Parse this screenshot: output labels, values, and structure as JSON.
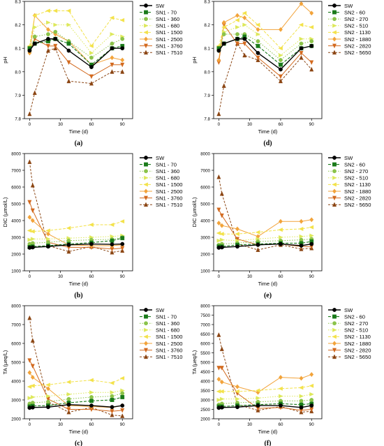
{
  "colors": {
    "SW": "#000000",
    "T1": "#1a7a1a",
    "T2": "#8bc34a",
    "T3": "#dde85a",
    "T4": "#f3e24a",
    "T5": "#f2a33a",
    "T6": "#d2691e",
    "T7": "#8b4513"
  },
  "chart_data": [
    {
      "panel": "(a)",
      "type": "line",
      "x": [
        0,
        5,
        18,
        25,
        38,
        60,
        80,
        90
      ],
      "xlabel": "Time (d)",
      "ylabel": "pH",
      "xlim": [
        -5,
        100
      ],
      "xticks": [
        0,
        30,
        60,
        90
      ],
      "ylim": [
        7.8,
        8.3
      ],
      "yticks": [
        7.8,
        7.9,
        8.0,
        8.1,
        8.2,
        8.3
      ],
      "series": [
        {
          "name": "SW",
          "values": [
            8.09,
            8.12,
            8.14,
            8.14,
            8.09,
            8.02,
            8.1,
            8.1
          ]
        },
        {
          "name": "SN1 - 70",
          "values": [
            8.1,
            8.12,
            8.13,
            8.14,
            8.12,
            8.03,
            8.1,
            8.11
          ]
        },
        {
          "name": "SN1 - 360",
          "values": [
            8.09,
            8.15,
            8.16,
            8.17,
            8.13,
            8.06,
            8.12,
            8.14
          ]
        },
        {
          "name": "SN1 - 680",
          "values": [
            8.1,
            8.19,
            8.21,
            8.2,
            8.2,
            8.08,
            8.16,
            8.15
          ]
        },
        {
          "name": "SN1 - 1500",
          "values": [
            8.11,
            8.24,
            8.26,
            8.26,
            8.26,
            8.11,
            8.23,
            8.22
          ]
        },
        {
          "name": "SN1 - 2500",
          "values": [
            8.08,
            8.24,
            8.18,
            8.16,
            8.13,
            8.03,
            8.06,
            8.05
          ]
        },
        {
          "name": "SN1 - 3760",
          "values": [
            8.08,
            8.14,
            8.11,
            8.11,
            8.04,
            7.98,
            8.03,
            8.03
          ]
        },
        {
          "name": "SN1 - 7510",
          "values": [
            7.82,
            7.91,
            8.09,
            8.1,
            7.96,
            7.95,
            8.0,
            8.0
          ]
        }
      ]
    },
    {
      "panel": "(d)",
      "type": "line",
      "x": [
        0,
        5,
        18,
        25,
        38,
        60,
        80,
        90
      ],
      "xlabel": "Time (d)",
      "ylabel": "pH",
      "xlim": [
        -5,
        100
      ],
      "xticks": [
        0,
        30,
        60,
        90
      ],
      "ylim": [
        7.8,
        8.3
      ],
      "yticks": [
        7.8,
        7.9,
        8.0,
        8.1,
        8.2,
        8.3
      ],
      "series": [
        {
          "name": "SW",
          "values": [
            8.09,
            8.12,
            8.14,
            8.14,
            8.08,
            8.01,
            8.1,
            8.11
          ]
        },
        {
          "name": "SN2 - 60",
          "values": [
            8.1,
            8.12,
            8.14,
            8.15,
            8.11,
            8.03,
            8.1,
            8.11
          ]
        },
        {
          "name": "SN2 - 270",
          "values": [
            8.09,
            8.16,
            8.16,
            8.16,
            8.13,
            8.05,
            8.12,
            8.13
          ]
        },
        {
          "name": "SN2 - 510",
          "values": [
            8.1,
            8.17,
            8.19,
            8.2,
            8.16,
            8.07,
            8.14,
            8.14
          ]
        },
        {
          "name": "SN2 - 1130",
          "values": [
            8.11,
            8.19,
            8.22,
            8.25,
            8.2,
            8.1,
            8.2,
            8.19
          ]
        },
        {
          "name": "SN2 - 1880",
          "values": [
            8.05,
            8.21,
            8.24,
            8.23,
            8.18,
            8.18,
            8.29,
            8.25
          ]
        },
        {
          "name": "SN2 - 2820",
          "values": [
            8.04,
            8.2,
            8.12,
            8.12,
            8.06,
            7.98,
            8.08,
            8.04
          ]
        },
        {
          "name": "SN2 - 5650",
          "values": [
            7.82,
            7.94,
            8.12,
            8.07,
            8.05,
            7.96,
            8.06,
            8.01
          ]
        }
      ]
    },
    {
      "panel": "(b)",
      "type": "line",
      "x": [
        0,
        3,
        18,
        38,
        60,
        80,
        90
      ],
      "xlabel": "Time (d)",
      "ylabel": "DIC (µmol/L)",
      "xlim": [
        -5,
        100
      ],
      "xticks": [
        0,
        30,
        60,
        90
      ],
      "ylim": [
        1000,
        8000
      ],
      "yticks": [
        1000,
        2000,
        3000,
        4000,
        5000,
        6000,
        7000,
        8000
      ],
      "series": [
        {
          "name": "SW",
          "values": [
            2380,
            2400,
            2450,
            2550,
            2600,
            2580,
            2600
          ]
        },
        {
          "name": "SN1 - 70",
          "values": [
            2420,
            2450,
            2500,
            2600,
            2680,
            2800,
            2950
          ]
        },
        {
          "name": "SN1 - 360",
          "values": [
            2600,
            2650,
            2700,
            2800,
            2850,
            2880,
            3000
          ]
        },
        {
          "name": "SN1 - 680",
          "values": [
            2850,
            2900,
            2900,
            2950,
            3000,
            3050,
            3100
          ]
        },
        {
          "name": "SN1 - 1500",
          "values": [
            3400,
            3350,
            3400,
            3550,
            3750,
            3750,
            3950
          ]
        },
        {
          "name": "SN1 - 2500",
          "values": [
            4200,
            4000,
            3200,
            2550,
            2500,
            2500,
            2550
          ]
        },
        {
          "name": "SN1 - 3760",
          "values": [
            5100,
            4600,
            2700,
            2400,
            2400,
            2300,
            2350
          ]
        },
        {
          "name": "SN1 - 7510",
          "values": [
            7500,
            6100,
            2500,
            2150,
            2450,
            2100,
            2200
          ]
        }
      ]
    },
    {
      "panel": "(e)",
      "type": "line",
      "x": [
        0,
        3,
        18,
        38,
        60,
        80,
        90
      ],
      "xlabel": "Time (d)",
      "ylabel": "DIC (µmol/L)",
      "xlim": [
        -5,
        100
      ],
      "xticks": [
        0,
        30,
        60,
        90
      ],
      "ylim": [
        1000,
        8000
      ],
      "yticks": [
        1000,
        2000,
        3000,
        4000,
        5000,
        6000,
        7000,
        8000
      ],
      "series": [
        {
          "name": "SW",
          "values": [
            2380,
            2400,
            2450,
            2550,
            2600,
            2500,
            2600
          ]
        },
        {
          "name": "SN2 - 60",
          "values": [
            2450,
            2450,
            2550,
            2600,
            2650,
            2650,
            2750
          ]
        },
        {
          "name": "SN2 - 270",
          "values": [
            2550,
            2600,
            2650,
            2750,
            2800,
            2850,
            2900
          ]
        },
        {
          "name": "SN2 - 510",
          "values": [
            2800,
            2850,
            2800,
            2900,
            3000,
            3050,
            3100
          ]
        },
        {
          "name": "SN2 - 1130",
          "values": [
            3250,
            3200,
            3200,
            3300,
            3450,
            3500,
            3600
          ]
        },
        {
          "name": "SN2 - 1880",
          "values": [
            3850,
            3700,
            3500,
            3050,
            3950,
            3950,
            4050
          ]
        },
        {
          "name": "SN2 - 2820",
          "values": [
            4650,
            4300,
            2900,
            2550,
            2600,
            2450,
            2450
          ]
        },
        {
          "name": "SN2 - 5650",
          "values": [
            6600,
            5600,
            2600,
            2250,
            2550,
            2300,
            2350
          ]
        }
      ]
    },
    {
      "panel": "(c)",
      "type": "line",
      "x": [
        0,
        3,
        18,
        38,
        60,
        80,
        90
      ],
      "xlabel": "Time (d)",
      "ylabel": "TA (µeq/L)",
      "xlim": [
        -5,
        100
      ],
      "xticks": [
        0,
        30,
        60,
        90
      ],
      "ylim": [
        2000,
        8000
      ],
      "yticks": [
        2000,
        3000,
        4000,
        5000,
        6000,
        7000,
        8000
      ],
      "series": [
        {
          "name": "SW",
          "values": [
            2580,
            2600,
            2620,
            2750,
            2700,
            2620,
            2700
          ]
        },
        {
          "name": "SN1 - 70",
          "values": [
            2650,
            2680,
            2700,
            2850,
            2950,
            3000,
            3150
          ]
        },
        {
          "name": "SN1 - 360",
          "values": [
            2800,
            2850,
            2900,
            3050,
            3150,
            3200,
            3350
          ]
        },
        {
          "name": "SN1 - 680",
          "values": [
            3100,
            3150,
            3200,
            3300,
            3400,
            3400,
            3500
          ]
        },
        {
          "name": "SN1 - 1500",
          "values": [
            3700,
            3750,
            3800,
            3950,
            4050,
            3900,
            4150
          ]
        },
        {
          "name": "SN1 - 2500",
          "values": [
            4450,
            4200,
            3600,
            2700,
            2650,
            2600,
            2700
          ]
        },
        {
          "name": "SN1 - 3760",
          "values": [
            5100,
            4800,
            3050,
            2500,
            2500,
            2400,
            2450
          ]
        },
        {
          "name": "SN1 - 7510",
          "values": [
            7350,
            6150,
            2900,
            2350,
            2600,
            2200,
            2150
          ]
        }
      ]
    },
    {
      "panel": "(f)",
      "type": "line",
      "x": [
        0,
        3,
        18,
        38,
        60,
        80,
        90
      ],
      "xlabel": "Time (d)",
      "ylabel": "TA (µeq/L)",
      "xlim": [
        -5,
        100
      ],
      "xticks": [
        0,
        30,
        60,
        90
      ],
      "ylim": [
        2000,
        8000
      ],
      "yticks": [
        2000,
        2500,
        3000,
        3500,
        4000,
        4500,
        5000,
        5500,
        6000,
        6500,
        7000,
        7500,
        8000
      ],
      "series": [
        {
          "name": "SW",
          "values": [
            2580,
            2600,
            2620,
            2700,
            2700,
            2600,
            2700
          ]
        },
        {
          "name": "SN2 - 60",
          "values": [
            2650,
            2650,
            2700,
            2750,
            2800,
            2750,
            2800
          ]
        },
        {
          "name": "SN2 - 270",
          "values": [
            2750,
            2800,
            2850,
            2900,
            2950,
            2950,
            3000
          ]
        },
        {
          "name": "SN2 - 510",
          "values": [
            3000,
            3050,
            3050,
            3100,
            3200,
            3200,
            3300
          ]
        },
        {
          "name": "SN2 - 1130",
          "values": [
            3450,
            3450,
            3450,
            3500,
            3600,
            3650,
            3750
          ]
        },
        {
          "name": "SN2 - 1880",
          "values": [
            4100,
            3950,
            3700,
            3400,
            4200,
            4150,
            4350
          ]
        },
        {
          "name": "SN2 - 2820",
          "values": [
            4700,
            4700,
            3350,
            2550,
            2600,
            2450,
            2500
          ]
        },
        {
          "name": "SN2 - 5650",
          "values": [
            6450,
            5700,
            2750,
            2450,
            2650,
            2350,
            2400
          ]
        }
      ]
    }
  ]
}
